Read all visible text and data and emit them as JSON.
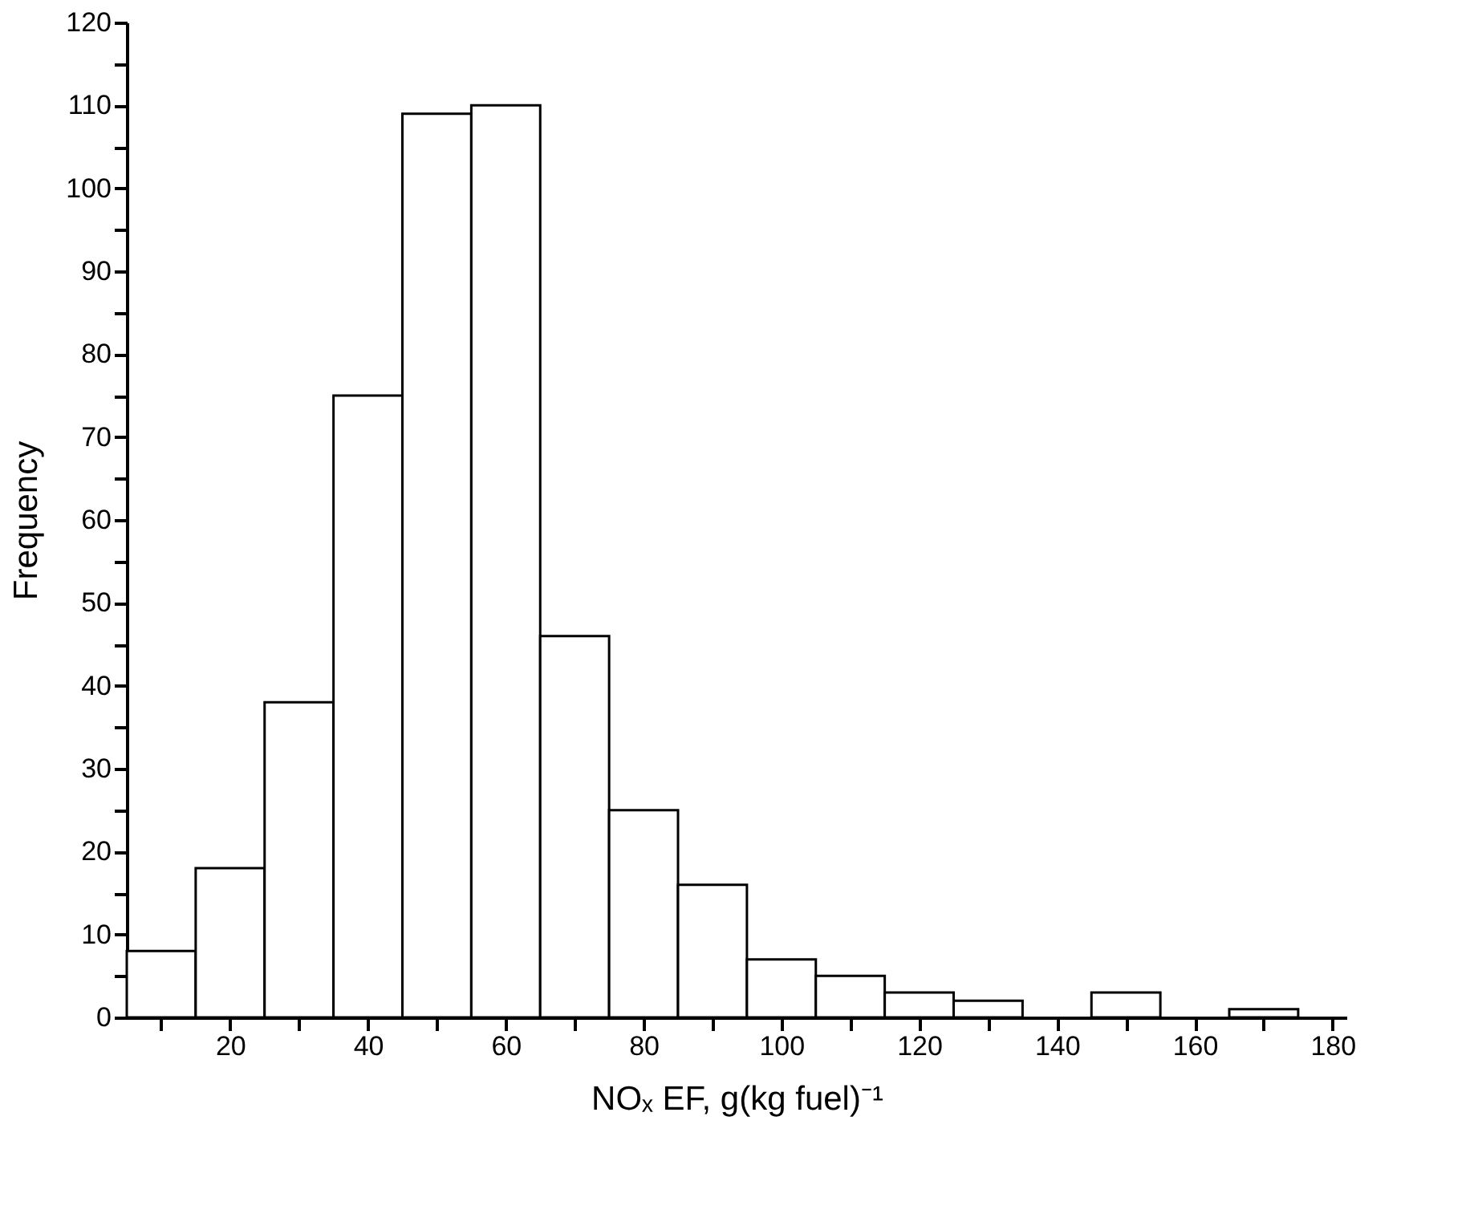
{
  "chart_data": {
    "type": "histogram",
    "xlabel": "NOₓ EF, g(kg fuel)⁻¹",
    "ylabel": "Frequency",
    "bins": [
      5,
      15,
      25,
      35,
      45,
      55,
      65,
      75,
      85,
      95,
      105,
      115,
      125,
      135,
      145,
      155,
      165,
      175
    ],
    "values": [
      8,
      18,
      38,
      75,
      109,
      110,
      46,
      25,
      16,
      7,
      5,
      3,
      2,
      0,
      3,
      0,
      1
    ],
    "color": "#ffffff",
    "xlim": [
      5,
      182
    ],
    "ylim": [
      0,
      120
    ],
    "xticks": [
      {
        "value": 10,
        "label": null
      },
      20,
      {
        "value": 30,
        "label": null
      },
      40,
      {
        "value": 50,
        "label": null
      },
      60,
      {
        "value": 70,
        "label": null
      },
      80,
      {
        "value": 90,
        "label": null
      },
      100,
      {
        "value": 110,
        "label": null
      },
      120,
      {
        "value": 130,
        "label": null
      },
      140,
      {
        "value": 150,
        "label": null
      },
      160,
      {
        "value": 170,
        "label": null
      },
      180
    ],
    "yticks": [
      0,
      {
        "value": 5,
        "label": null
      },
      10,
      {
        "value": 15,
        "label": null
      },
      20,
      {
        "value": 25,
        "label": null
      },
      30,
      {
        "value": 35,
        "label": null
      },
      40,
      {
        "value": 45,
        "label": null
      },
      50,
      {
        "value": 55,
        "label": null
      },
      60,
      {
        "value": 65,
        "label": null
      },
      70,
      {
        "value": 75,
        "label": null
      },
      80,
      {
        "value": 85,
        "label": null
      },
      90,
      {
        "value": 95,
        "label": null
      },
      100,
      {
        "value": 105,
        "label": null
      },
      110,
      {
        "value": 115,
        "label": null
      },
      120
    ],
    "grid": false
  }
}
